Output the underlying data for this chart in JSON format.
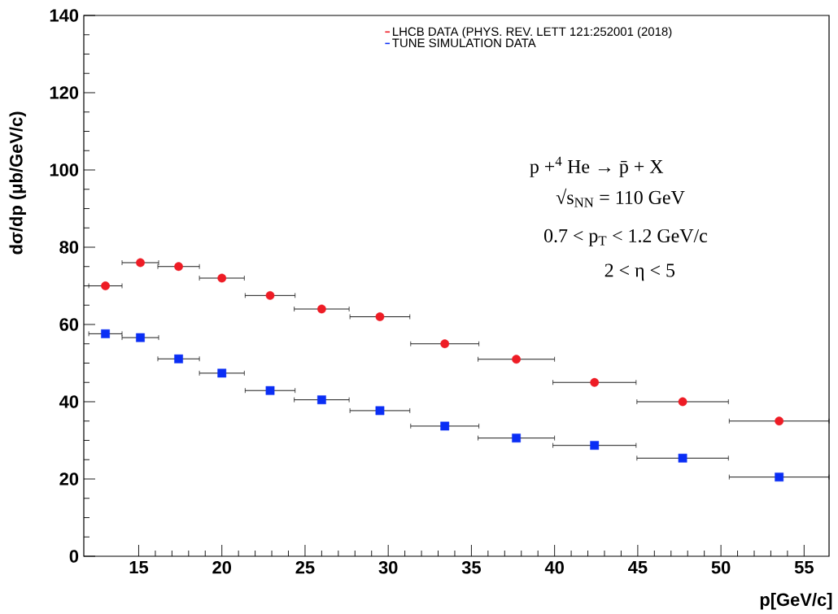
{
  "chart_data": {
    "type": "scatter",
    "xlabel": "p[GeV/c]",
    "ylabel": "dσ/dp (μb/GeV/c)",
    "x": [
      13,
      15.1,
      17.4,
      20,
      22.9,
      26,
      29.5,
      33.4,
      37.7,
      42.4,
      47.7,
      53.5
    ],
    "series": [
      {
        "name": "LHCB DATA (PHYS. REV. LETT 121:252001 (2018)",
        "color": "#ee1c25",
        "marker": "circle",
        "values": [
          70,
          76,
          75,
          72,
          67.5,
          64,
          62,
          55,
          51,
          45,
          40,
          35
        ],
        "xerrors": [
          1,
          1.1,
          1.25,
          1.35,
          1.5,
          1.65,
          1.8,
          2.05,
          2.3,
          2.5,
          2.75,
          3
        ]
      },
      {
        "name": "TUNE SIMULATION DATA",
        "color": "#0a2ef5",
        "marker": "square",
        "values": [
          57.6,
          56.6,
          51.1,
          47.4,
          42.9,
          40.5,
          37.7,
          33.7,
          30.6,
          28.7,
          25.4,
          20.5
        ],
        "xerrors": [
          1,
          1.1,
          1.25,
          1.35,
          1.5,
          1.65,
          1.8,
          2.05,
          2.3,
          2.5,
          2.75,
          3
        ]
      }
    ],
    "xlim": [
      11.7,
      56.5
    ],
    "ylim": [
      0,
      140
    ],
    "xticks": [
      15,
      20,
      25,
      30,
      35,
      40,
      45,
      50,
      55
    ],
    "yticks": [
      0,
      20,
      40,
      60,
      80,
      100,
      120,
      140
    ],
    "legend": "top right",
    "grid": false,
    "annotations": [
      "p +$^{4}$ He → p̄ + X",
      "√s$_{NN}$ = 110 GeV",
      "0.7 < p$_{T}$ < 1.2 GeV/c",
      "2 < η < 5"
    ]
  }
}
